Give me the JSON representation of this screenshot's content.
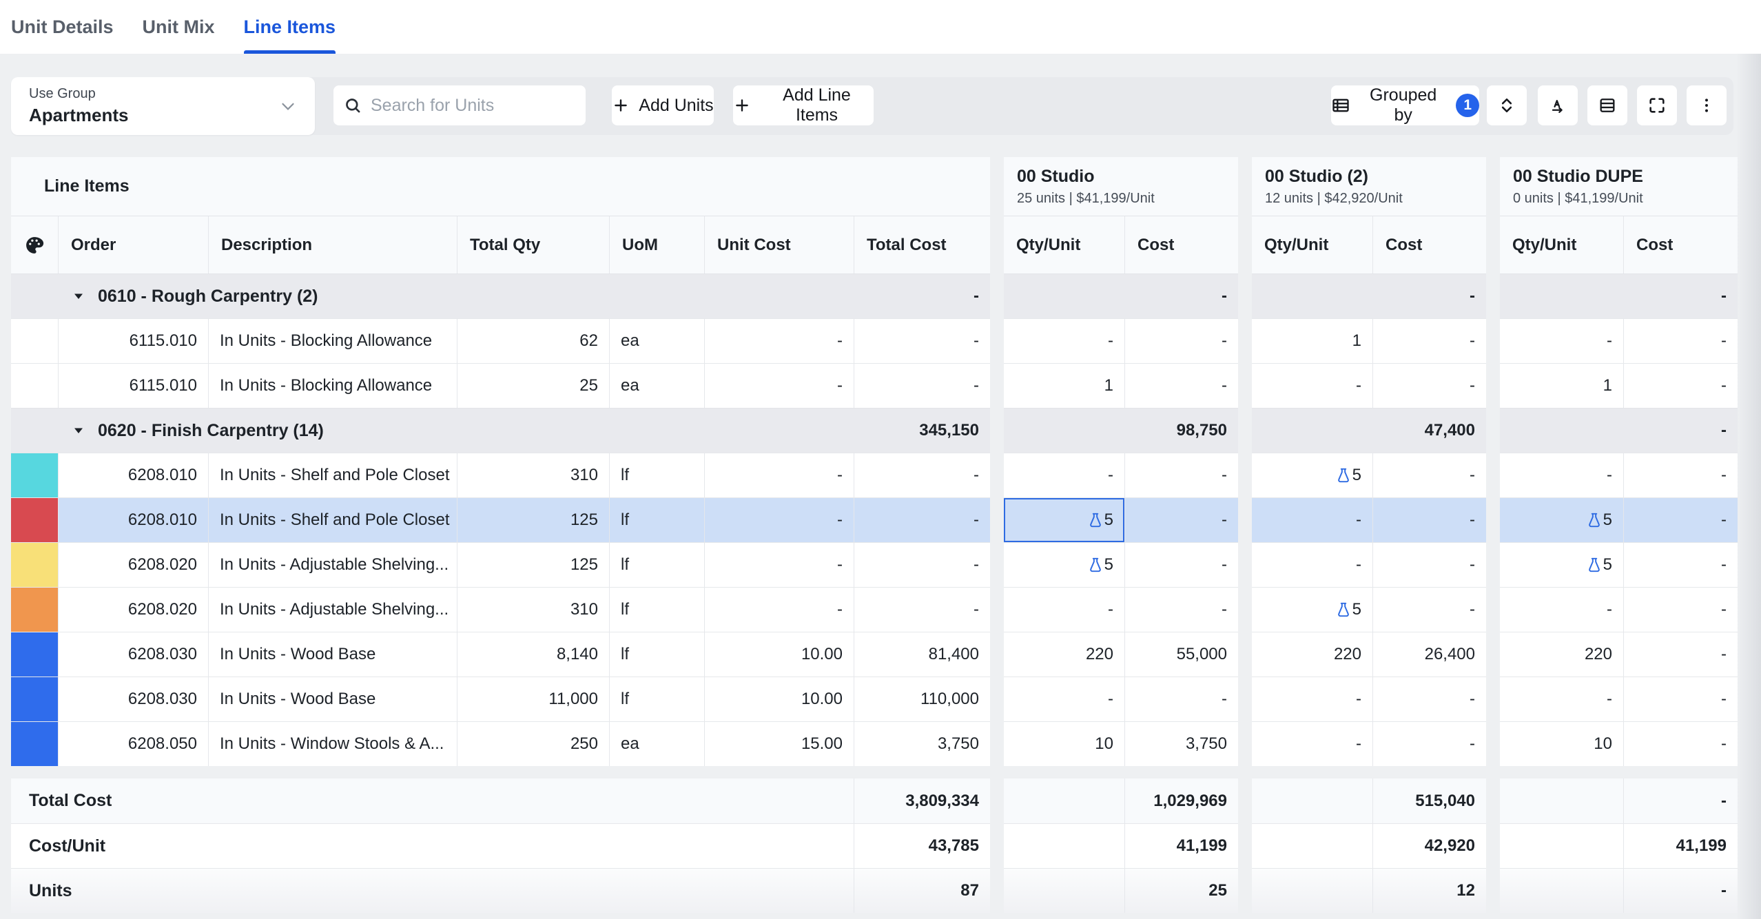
{
  "tabs": [
    {
      "label": "Unit Details",
      "active": false
    },
    {
      "label": "Unit Mix",
      "active": false
    },
    {
      "label": "Line Items",
      "active": true
    }
  ],
  "toolbar": {
    "use_group_label": "Use Group",
    "use_group_value": "Apartments",
    "search_placeholder": "Search for Units",
    "add_units_label": "Add Units",
    "add_line_items_label": "Add Line Items",
    "grouped_by_label": "Grouped by",
    "grouped_by_count": "1"
  },
  "icons": {
    "search": "magnifier",
    "plus": "plus-sign",
    "chevron_down": "chevron-down",
    "caret_down": "filled-caret-down",
    "formula": "blue-flask",
    "grouped_by": "grouped-table",
    "expand_collapse": "chevrons-up-down",
    "sort": "letter-A-with-arrow",
    "row_density": "stacked-rows",
    "fullscreen": "corner-brackets",
    "more": "vertical-kebab-dots",
    "color_column": "paint-palette"
  },
  "colors": {
    "accent": "#1a56db",
    "badge": "#2563eb",
    "selected_row": "#cddef7",
    "focus_border": "#2e6be2",
    "flask": "#2e6be2",
    "group_row_bg": "#e9eaee"
  },
  "grid": {
    "title": "Line Items",
    "left_columns": [
      "Order",
      "Description",
      "Total Qty",
      "UoM",
      "Unit Cost",
      "Total Cost"
    ],
    "unit_subcolumns": [
      "Qty/Unit",
      "Cost"
    ],
    "unit_groups": [
      {
        "name": "00 Studio",
        "subtitle": "25 units | $41,199/Unit"
      },
      {
        "name": "00 Studio (2)",
        "subtitle": "12 units | $42,920/Unit"
      },
      {
        "name": "00 Studio DUPE",
        "subtitle": "0 units | $41,199/Unit"
      }
    ],
    "rows": [
      {
        "type": "group",
        "label": "0610 - Rough Carpentry (2)",
        "total_cost": "-",
        "units": [
          {
            "cost": "-"
          },
          {
            "cost": "-"
          },
          {
            "cost": "-"
          }
        ]
      },
      {
        "type": "item",
        "swatch": null,
        "order": "6115.010",
        "description": "In Units - Blocking Allowance",
        "total_qty": "62",
        "uom": "ea",
        "unit_cost": "-",
        "total_cost": "-",
        "units": [
          {
            "qty": "-",
            "cost": "-"
          },
          {
            "qty": "1",
            "cost": "-"
          },
          {
            "qty": "-",
            "cost": "-"
          }
        ]
      },
      {
        "type": "item",
        "swatch": null,
        "order": "6115.010",
        "description": "In Units - Blocking Allowance",
        "total_qty": "25",
        "uom": "ea",
        "unit_cost": "-",
        "total_cost": "-",
        "units": [
          {
            "qty": "1",
            "cost": "-"
          },
          {
            "qty": "-",
            "cost": "-"
          },
          {
            "qty": "1",
            "cost": "-"
          }
        ]
      },
      {
        "type": "group",
        "label": "0620 - Finish Carpentry (14)",
        "total_cost": "345,150",
        "units": [
          {
            "cost": "98,750"
          },
          {
            "cost": "47,400"
          },
          {
            "cost": "-"
          }
        ]
      },
      {
        "type": "item",
        "swatch": "#57d7df",
        "order": "6208.010",
        "description": "In Units - Shelf and Pole Closet",
        "total_qty": "310",
        "uom": "lf",
        "unit_cost": "-",
        "total_cost": "-",
        "units": [
          {
            "qty": "-",
            "cost": "-"
          },
          {
            "qty": "5",
            "formula": true,
            "cost": "-"
          },
          {
            "qty": "-",
            "cost": "-"
          }
        ]
      },
      {
        "type": "item",
        "swatch": "#d84a50",
        "order": "6208.010",
        "description": "In Units - Shelf and Pole Closet",
        "total_qty": "125",
        "uom": "lf",
        "unit_cost": "-",
        "total_cost": "-",
        "selected": true,
        "units": [
          {
            "qty": "5",
            "formula": true,
            "focused": true,
            "cost": "-"
          },
          {
            "qty": "-",
            "cost": "-"
          },
          {
            "qty": "5",
            "formula": true,
            "cost": "-"
          }
        ]
      },
      {
        "type": "item",
        "swatch": "#f8e078",
        "order": "6208.020",
        "description": "In Units - Adjustable Shelving...",
        "total_qty": "125",
        "uom": "lf",
        "unit_cost": "-",
        "total_cost": "-",
        "units": [
          {
            "qty": "5",
            "formula": true,
            "cost": "-"
          },
          {
            "qty": "-",
            "cost": "-"
          },
          {
            "qty": "5",
            "formula": true,
            "cost": "-"
          }
        ]
      },
      {
        "type": "item",
        "swatch": "#f0964e",
        "order": "6208.020",
        "description": "In Units - Adjustable Shelving...",
        "total_qty": "310",
        "uom": "lf",
        "unit_cost": "-",
        "total_cost": "-",
        "units": [
          {
            "qty": "-",
            "cost": "-"
          },
          {
            "qty": "5",
            "formula": true,
            "cost": "-"
          },
          {
            "qty": "-",
            "cost": "-"
          }
        ]
      },
      {
        "type": "item",
        "swatch": "#2f6cec",
        "order": "6208.030",
        "description": "In Units - Wood Base",
        "total_qty": "8,140",
        "uom": "lf",
        "unit_cost": "10.00",
        "total_cost": "81,400",
        "units": [
          {
            "qty": "220",
            "cost": "55,000"
          },
          {
            "qty": "220",
            "cost": "26,400"
          },
          {
            "qty": "220",
            "cost": "-"
          }
        ]
      },
      {
        "type": "item",
        "swatch": "#2f6cec",
        "order": "6208.030",
        "description": "In Units - Wood Base",
        "total_qty": "11,000",
        "uom": "lf",
        "unit_cost": "10.00",
        "total_cost": "110,000",
        "units": [
          {
            "qty": "-",
            "cost": "-"
          },
          {
            "qty": "-",
            "cost": "-"
          },
          {
            "qty": "-",
            "cost": "-"
          }
        ]
      },
      {
        "type": "item",
        "swatch": "#2f6cec",
        "order": "6208.050",
        "description": "In Units - Window Stools & A...",
        "total_qty": "250",
        "uom": "ea",
        "unit_cost": "15.00",
        "total_cost": "3,750",
        "units": [
          {
            "qty": "10",
            "cost": "3,750"
          },
          {
            "qty": "-",
            "cost": "-"
          },
          {
            "qty": "10",
            "cost": "-"
          }
        ]
      }
    ],
    "footer": [
      {
        "label": "Total Cost",
        "value": "3,809,334",
        "units": [
          "1,029,969",
          "515,040",
          "-"
        ]
      },
      {
        "label": "Cost/Unit",
        "value": "43,785",
        "units": [
          "41,199",
          "42,920",
          "41,199"
        ]
      },
      {
        "label": "Units",
        "value": "87",
        "units": [
          "25",
          "12",
          "-"
        ]
      }
    ]
  }
}
